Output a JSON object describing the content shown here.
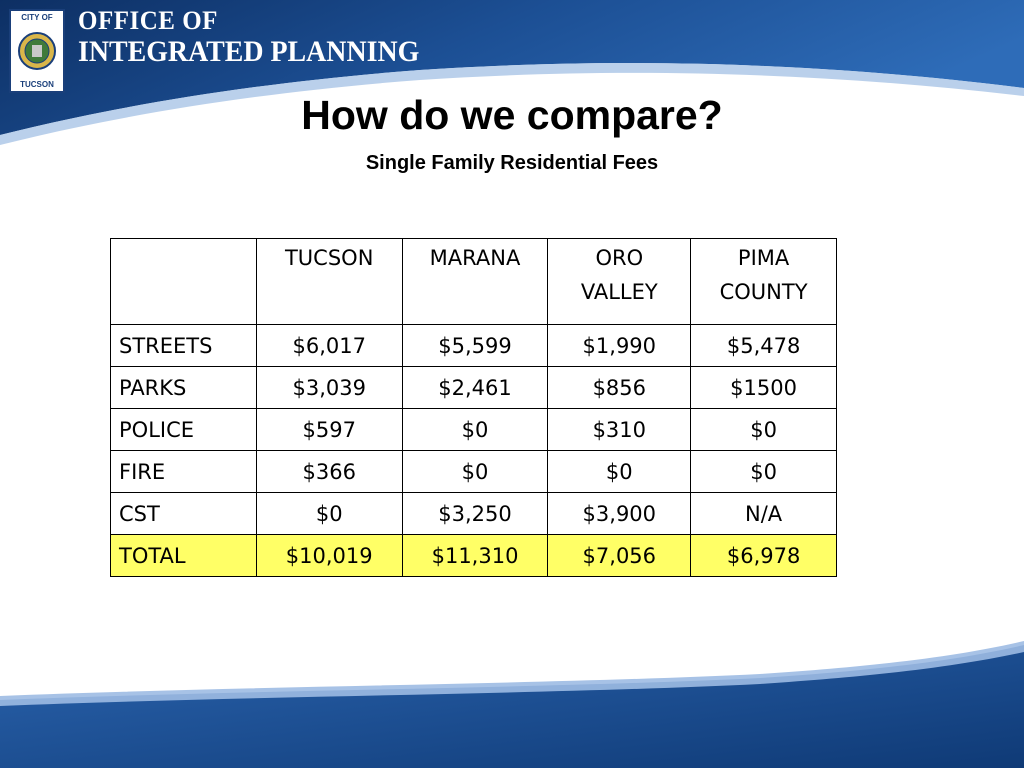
{
  "header": {
    "seal_top": "CITY OF",
    "seal_bottom": "TUCSON",
    "org_line1": "OFFICE OF",
    "org_line2": "INTEGRATED PLANNING"
  },
  "slide": {
    "title": "How do we compare?",
    "subtitle": "Single Family Residential Fees"
  },
  "table": {
    "columns": [
      "",
      "TUCSON",
      "MARANA",
      "ORO VALLEY",
      "PIMA COUNTY"
    ],
    "column_lines": [
      [
        ""
      ],
      [
        "TUCSON"
      ],
      [
        "MARANA"
      ],
      [
        "ORO",
        "VALLEY"
      ],
      [
        "PIMA",
        "COUNTY"
      ]
    ],
    "rows": [
      {
        "label": "STREETS",
        "values": [
          "$6,017",
          "$5,599",
          "$1,990",
          "$5,478"
        ]
      },
      {
        "label": "PARKS",
        "values": [
          "$3,039",
          "$2,461",
          "$856",
          "$1500"
        ]
      },
      {
        "label": "POLICE",
        "values": [
          "$597",
          "$0",
          "$310",
          "$0"
        ]
      },
      {
        "label": "FIRE",
        "values": [
          "$366",
          "$0",
          "$0",
          "$0"
        ]
      },
      {
        "label": "CST",
        "values": [
          "$0",
          "$3,250",
          "$3,900",
          "N/A"
        ]
      },
      {
        "label": "TOTAL",
        "values": [
          "$10,019",
          "$11,310",
          "$7,056",
          "$6,978"
        ],
        "highlight": true
      }
    ]
  },
  "colors": {
    "brand_blue": "#1a4a8a",
    "total_highlight": "#ffff66"
  }
}
